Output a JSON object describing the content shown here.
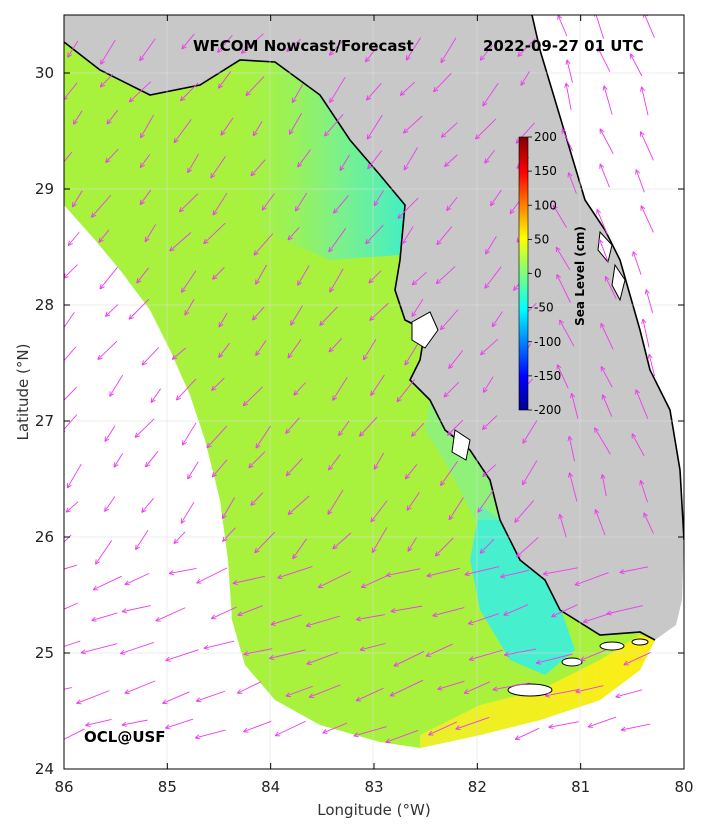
{
  "title_left": "WFCOM Nowcast/Forecast",
  "title_right": "2022-09-27 01 UTC",
  "xlabel": "Longitude (°W)",
  "ylabel": "Latitude (°N)",
  "x_ticks": [
    "86",
    "85",
    "84",
    "83",
    "82",
    "81",
    "80"
  ],
  "y_ticks": [
    "30",
    "29",
    "28",
    "27",
    "26",
    "25",
    "24"
  ],
  "credit": "OCL@USF",
  "colorbar": {
    "label": "Sea Level (cm)",
    "ticks": [
      "200",
      "150",
      "100",
      "50",
      "0",
      "-50",
      "-100",
      "-150",
      "-200"
    ]
  },
  "colors": {
    "land": "#c8c8c8",
    "ocean_model": "#a8f23e",
    "nearshore": "#2ff0ee",
    "keys_high": "#f2ef1a",
    "vectors": "#ee3bee",
    "grid": "#dedede"
  }
}
